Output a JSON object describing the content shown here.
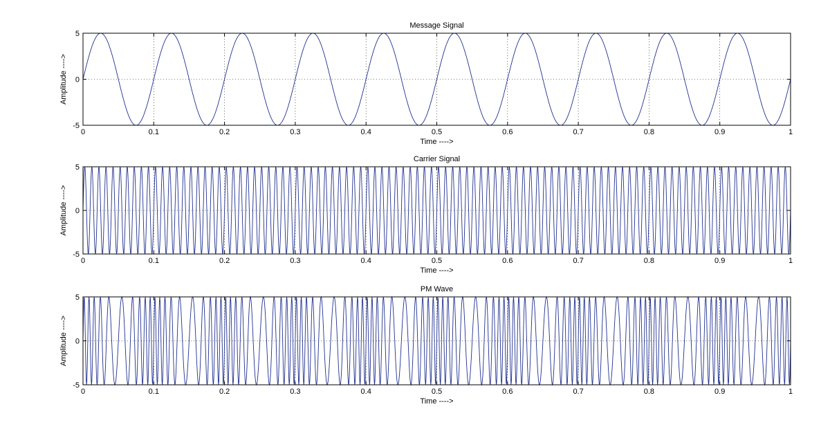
{
  "chart_data": [
    {
      "type": "line",
      "title": "Message Signal",
      "xlabel": "Time ---->",
      "ylabel": "Amplitude ---->",
      "xlim": [
        0,
        1
      ],
      "ylim": [
        -5,
        5
      ],
      "xticks": [
        "0",
        "0.1",
        "0.2",
        "0.3",
        "0.4",
        "0.5",
        "0.6",
        "0.7",
        "0.8",
        "0.9",
        "1"
      ],
      "yticks": [
        "-5",
        "0",
        "5"
      ],
      "grid": true,
      "series": [
        {
          "function": "sine",
          "amplitude": 5,
          "frequency_hz": 10,
          "sample_count": 2001,
          "color": "#1f2f8f"
        }
      ]
    },
    {
      "type": "line",
      "title": "Carrier Signal",
      "xlabel": "Time ---->",
      "ylabel": "Amplitude ---->",
      "xlim": [
        0,
        1
      ],
      "ylim": [
        -5,
        5
      ],
      "xticks": [
        "0",
        "0.1",
        "0.2",
        "0.3",
        "0.4",
        "0.5",
        "0.6",
        "0.7",
        "0.8",
        "0.9",
        "1"
      ],
      "yticks": [
        "-5",
        "0",
        "5"
      ],
      "grid": true,
      "series": [
        {
          "function": "sine",
          "amplitude": 5,
          "frequency_hz": 100,
          "sample_count": 2001,
          "color": "#1f2f8f"
        }
      ]
    },
    {
      "type": "line",
      "title": "PM Wave",
      "xlabel": "Time ---->",
      "ylabel": "Amplitude ---->",
      "xlim": [
        0,
        1
      ],
      "ylim": [
        -5,
        5
      ],
      "xticks": [
        "0",
        "0.1",
        "0.2",
        "0.3",
        "0.4",
        "0.5",
        "0.6",
        "0.7",
        "0.8",
        "0.9",
        "1"
      ],
      "yticks": [
        "-5",
        "0",
        "5"
      ],
      "grid": true,
      "series": [
        {
          "function": "pm",
          "amplitude": 5,
          "carrier_frequency_hz": 100,
          "message_frequency_hz": 10,
          "modulation_index": 5,
          "sample_count": 2001,
          "color": "#1f2f8f"
        }
      ]
    }
  ]
}
